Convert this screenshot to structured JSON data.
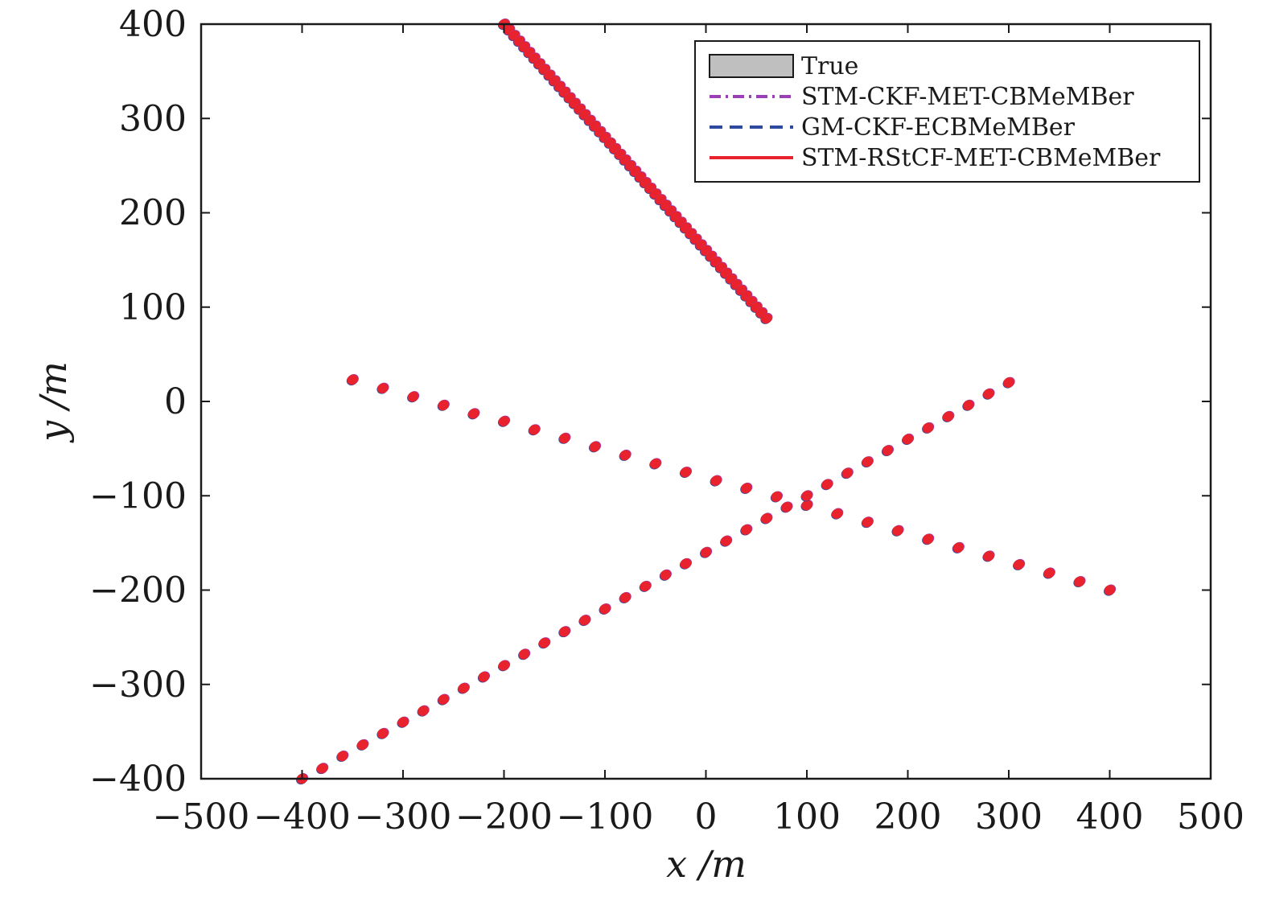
{
  "chart_data": {
    "type": "scatter",
    "xlabel": "x /m",
    "ylabel": "y /m",
    "xlim": [
      -500,
      500
    ],
    "ylim": [
      -400,
      400
    ],
    "xticks": [
      -500,
      -400,
      -300,
      -200,
      -100,
      0,
      100,
      200,
      300,
      400,
      500
    ],
    "yticks": [
      -400,
      -300,
      -200,
      -100,
      0,
      100,
      200,
      300,
      400
    ],
    "xtick_labels": [
      "−500",
      "−400",
      "−300",
      "−200",
      "−100",
      "0",
      "100",
      "200",
      "300",
      "400",
      "500"
    ],
    "ytick_labels": [
      "−400",
      "−300",
      "−200",
      "−100",
      "0",
      "100",
      "200",
      "300",
      "400"
    ],
    "grid": false,
    "legend_position": "top-right",
    "legend": [
      {
        "label": "True",
        "style": "patch",
        "color": "#bfbfbf"
      },
      {
        "label": "STM-CKF-MET-CBMeMBer",
        "style": "dash-dot",
        "color": "#9b3fb5"
      },
      {
        "label": "GM-CKF-ECBMeMBer",
        "style": "dashed",
        "color": "#2e4a9e"
      },
      {
        "label": "STM-RStCF-MET-CBMeMBer",
        "style": "solid",
        "color": "#e8232e"
      }
    ],
    "series": [
      {
        "track": 1,
        "points": [
          [
            -200,
            400
          ],
          [
            -195,
            394
          ],
          [
            -190,
            388
          ],
          [
            -185,
            382
          ],
          [
            -180,
            376
          ],
          [
            -175,
            370
          ],
          [
            -170,
            364
          ],
          [
            -165,
            358
          ],
          [
            -160,
            352
          ],
          [
            -155,
            346
          ],
          [
            -150,
            340
          ],
          [
            -145,
            334
          ],
          [
            -140,
            328
          ],
          [
            -135,
            322
          ],
          [
            -130,
            316
          ],
          [
            -125,
            310
          ],
          [
            -120,
            304
          ],
          [
            -115,
            298
          ],
          [
            -110,
            292
          ],
          [
            -105,
            286
          ],
          [
            -100,
            280
          ],
          [
            -95,
            274
          ],
          [
            -90,
            268
          ],
          [
            -85,
            262
          ],
          [
            -80,
            256
          ],
          [
            -75,
            250
          ],
          [
            -70,
            244
          ],
          [
            -65,
            238
          ],
          [
            -60,
            232
          ],
          [
            -55,
            226
          ],
          [
            -50,
            220
          ],
          [
            -45,
            214
          ],
          [
            -40,
            208
          ],
          [
            -35,
            202
          ],
          [
            -30,
            196
          ],
          [
            -25,
            190
          ],
          [
            -20,
            184
          ],
          [
            -15,
            178
          ],
          [
            -10,
            172
          ],
          [
            -5,
            166
          ],
          [
            0,
            160
          ],
          [
            5,
            154
          ],
          [
            10,
            148
          ],
          [
            15,
            142
          ],
          [
            20,
            136
          ],
          [
            25,
            130
          ],
          [
            30,
            124
          ],
          [
            35,
            118
          ],
          [
            40,
            112
          ],
          [
            45,
            106
          ],
          [
            50,
            100
          ],
          [
            55,
            94
          ],
          [
            60,
            88
          ]
        ]
      },
      {
        "track": 2,
        "points": [
          [
            -350,
            23
          ],
          [
            -320,
            14
          ],
          [
            -290,
            5
          ],
          [
            -260,
            -4
          ],
          [
            -230,
            -13
          ],
          [
            -200,
            -21
          ],
          [
            -170,
            -30
          ],
          [
            -140,
            -39
          ],
          [
            -110,
            -48
          ],
          [
            -80,
            -57
          ],
          [
            -50,
            -66
          ],
          [
            -20,
            -75
          ],
          [
            10,
            -84
          ],
          [
            40,
            -92
          ],
          [
            70,
            -101
          ],
          [
            100,
            -110
          ],
          [
            130,
            -119
          ],
          [
            160,
            -128
          ],
          [
            190,
            -137
          ],
          [
            220,
            -146
          ],
          [
            250,
            -155
          ],
          [
            280,
            -164
          ],
          [
            310,
            -173
          ],
          [
            340,
            -182
          ],
          [
            370,
            -191
          ],
          [
            400,
            -200
          ]
        ]
      },
      {
        "track": 3,
        "points": [
          [
            -400,
            -400
          ],
          [
            -380,
            -389
          ],
          [
            -360,
            -376
          ],
          [
            -340,
            -364
          ],
          [
            -320,
            -352
          ],
          [
            -300,
            -340
          ],
          [
            -280,
            -328
          ],
          [
            -260,
            -316
          ],
          [
            -240,
            -304
          ],
          [
            -220,
            -292
          ],
          [
            -200,
            -280
          ],
          [
            -180,
            -268
          ],
          [
            -160,
            -256
          ],
          [
            -140,
            -244
          ],
          [
            -120,
            -232
          ],
          [
            -100,
            -220
          ],
          [
            -80,
            -208
          ],
          [
            -60,
            -196
          ],
          [
            -40,
            -184
          ],
          [
            -20,
            -172
          ],
          [
            0,
            -160
          ],
          [
            20,
            -148
          ],
          [
            40,
            -136
          ],
          [
            60,
            -124
          ],
          [
            80,
            -112
          ],
          [
            100,
            -100
          ],
          [
            120,
            -88
          ],
          [
            140,
            -76
          ],
          [
            160,
            -64
          ],
          [
            180,
            -52
          ],
          [
            200,
            -40
          ],
          [
            220,
            -28
          ],
          [
            240,
            -16
          ],
          [
            260,
            -4
          ],
          [
            280,
            8
          ],
          [
            300,
            20
          ]
        ]
      }
    ]
  }
}
